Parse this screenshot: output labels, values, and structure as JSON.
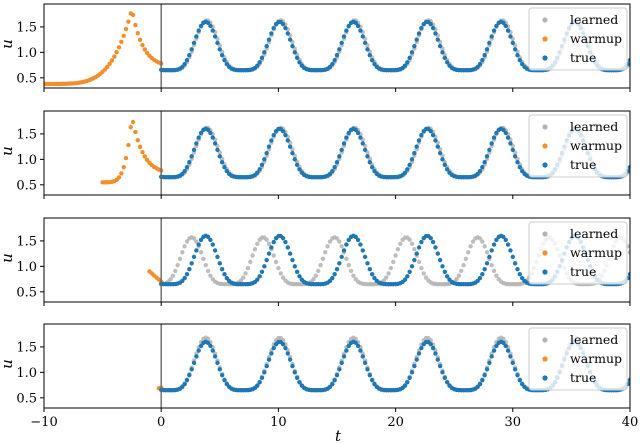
{
  "chart_data": {
    "type": "scatter",
    "layout": "4 stacked panels, shared x axis",
    "xlabel": "t",
    "ylabel": "u",
    "xlim": [
      -10,
      40
    ],
    "xticks": [
      -10,
      0,
      10,
      20,
      30,
      40
    ],
    "xtick_labels": [
      "−10",
      "0",
      "10",
      "20",
      "30",
      "40"
    ],
    "yticks": [
      0.5,
      1.0,
      1.5
    ],
    "ytick_labels": [
      "0.5",
      "1.0",
      "1.5"
    ],
    "ylim": [
      0.3,
      1.95
    ],
    "vertical_line_at_x": 0,
    "legend": {
      "position": "top-right",
      "entries": [
        {
          "name": "learned",
          "color": "#b3b3b3"
        },
        {
          "name": "warmup",
          "color": "#f28e2b"
        },
        {
          "name": "true",
          "color": "#1f77b4"
        }
      ]
    },
    "true_series": {
      "period": 6.3,
      "first_peak_t": 3.8,
      "min": 0.65,
      "max": 1.6,
      "t_range": [
        0,
        40
      ],
      "step": 0.2
    },
    "panels": [
      {
        "warmup": {
          "t_range": [
            -10,
            0
          ],
          "start_value": 0.38,
          "peak_t": -2.5,
          "peak_value": 1.85
        },
        "learned": {
          "period": 6.3,
          "first_peak_t": 3.9,
          "max": 1.63,
          "t_range": [
            0,
            40
          ]
        }
      },
      {
        "warmup": {
          "t_range": [
            -5,
            0
          ],
          "start_value": 0.55,
          "peak_t": -2.5,
          "peak_value": 1.85
        },
        "learned": {
          "period": 6.3,
          "first_peak_t": 3.9,
          "max": 1.62,
          "t_range": [
            0,
            40
          ]
        }
      },
      {
        "warmup": {
          "t_range": [
            -1,
            0
          ],
          "start_value": 0.9,
          "peak_t": null,
          "peak_value": null
        },
        "learned": {
          "period": 6.1,
          "first_peak_t": 2.6,
          "max": 1.57,
          "t_range": [
            0,
            40
          ]
        }
      },
      {
        "warmup": {
          "t_range": [
            -0.2,
            0
          ],
          "start_value": 0.69,
          "peak_t": null,
          "peak_value": null
        },
        "learned": {
          "period": 6.3,
          "first_peak_t": 3.8,
          "max": 1.68,
          "t_range": [
            0,
            40
          ]
        }
      }
    ]
  }
}
